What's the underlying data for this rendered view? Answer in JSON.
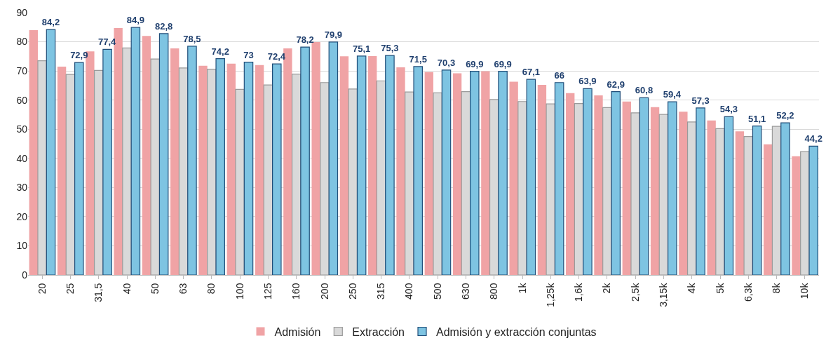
{
  "chart_data": {
    "type": "bar",
    "categories": [
      "20",
      "25",
      "31,5",
      "40",
      "50",
      "63",
      "80",
      "100",
      "125",
      "160",
      "200",
      "250",
      "315",
      "400",
      "500",
      "630",
      "800",
      "1k",
      "1,25k",
      "1,6k",
      "2k",
      "2,5k",
      "3,15k",
      "4k",
      "5k",
      "6,3k",
      "8k",
      "10k"
    ],
    "series": [
      {
        "name": "Admisión",
        "color": "#f0a3a5",
        "values": [
          84,
          71.5,
          76.7,
          84.7,
          82,
          77.7,
          71.8,
          72.5,
          72,
          77.7,
          79.9,
          75,
          75.1,
          71.2,
          69.6,
          69.2,
          69.9,
          66.3,
          65.2,
          62.4,
          61.6,
          59.5,
          57.6,
          56,
          53,
          49.3,
          44.8,
          40.7
        ]
      },
      {
        "name": "Extracción",
        "color": "#d9d9d9",
        "values": [
          73.5,
          68.8,
          70.2,
          77.9,
          74.1,
          71,
          70.6,
          63.7,
          65.2,
          68.9,
          66,
          63.8,
          66.6,
          62.8,
          62.5,
          62.9,
          60.2,
          59.5,
          58.7,
          58.8,
          57.4,
          55.6,
          55.1,
          52.5,
          50.2,
          47.5,
          51,
          42.3
        ]
      },
      {
        "name": "Admisión y extracción conjuntas",
        "color": "#7ec4e2",
        "values": [
          84.2,
          72.9,
          77.4,
          84.9,
          82.8,
          78.5,
          74.2,
          73,
          72.4,
          78.2,
          79.9,
          75.1,
          75.3,
          71.5,
          70.3,
          69.9,
          69.9,
          67.1,
          66,
          63.9,
          62.9,
          60.8,
          59.4,
          57.3,
          54.3,
          51.1,
          52.2,
          44.2
        ],
        "value_labels": [
          "84,2",
          "72,9",
          "77,4",
          "84,9",
          "82,8",
          "78,5",
          "74,2",
          "73",
          "72,4",
          "78,2",
          "79,9",
          "75,1",
          "75,3",
          "71,5",
          "70,3",
          "69,9",
          "69,9",
          "67,1",
          "66",
          "63,9",
          "62,9",
          "60,8",
          "59,4",
          "57,3",
          "54,3",
          "51,1",
          "52,2",
          "44,2"
        ]
      }
    ],
    "ylim": [
      0,
      90
    ],
    "yticks": [
      0,
      10,
      20,
      30,
      40,
      50,
      60,
      70,
      80,
      90
    ],
    "grid": "y",
    "legend": "bottom"
  }
}
